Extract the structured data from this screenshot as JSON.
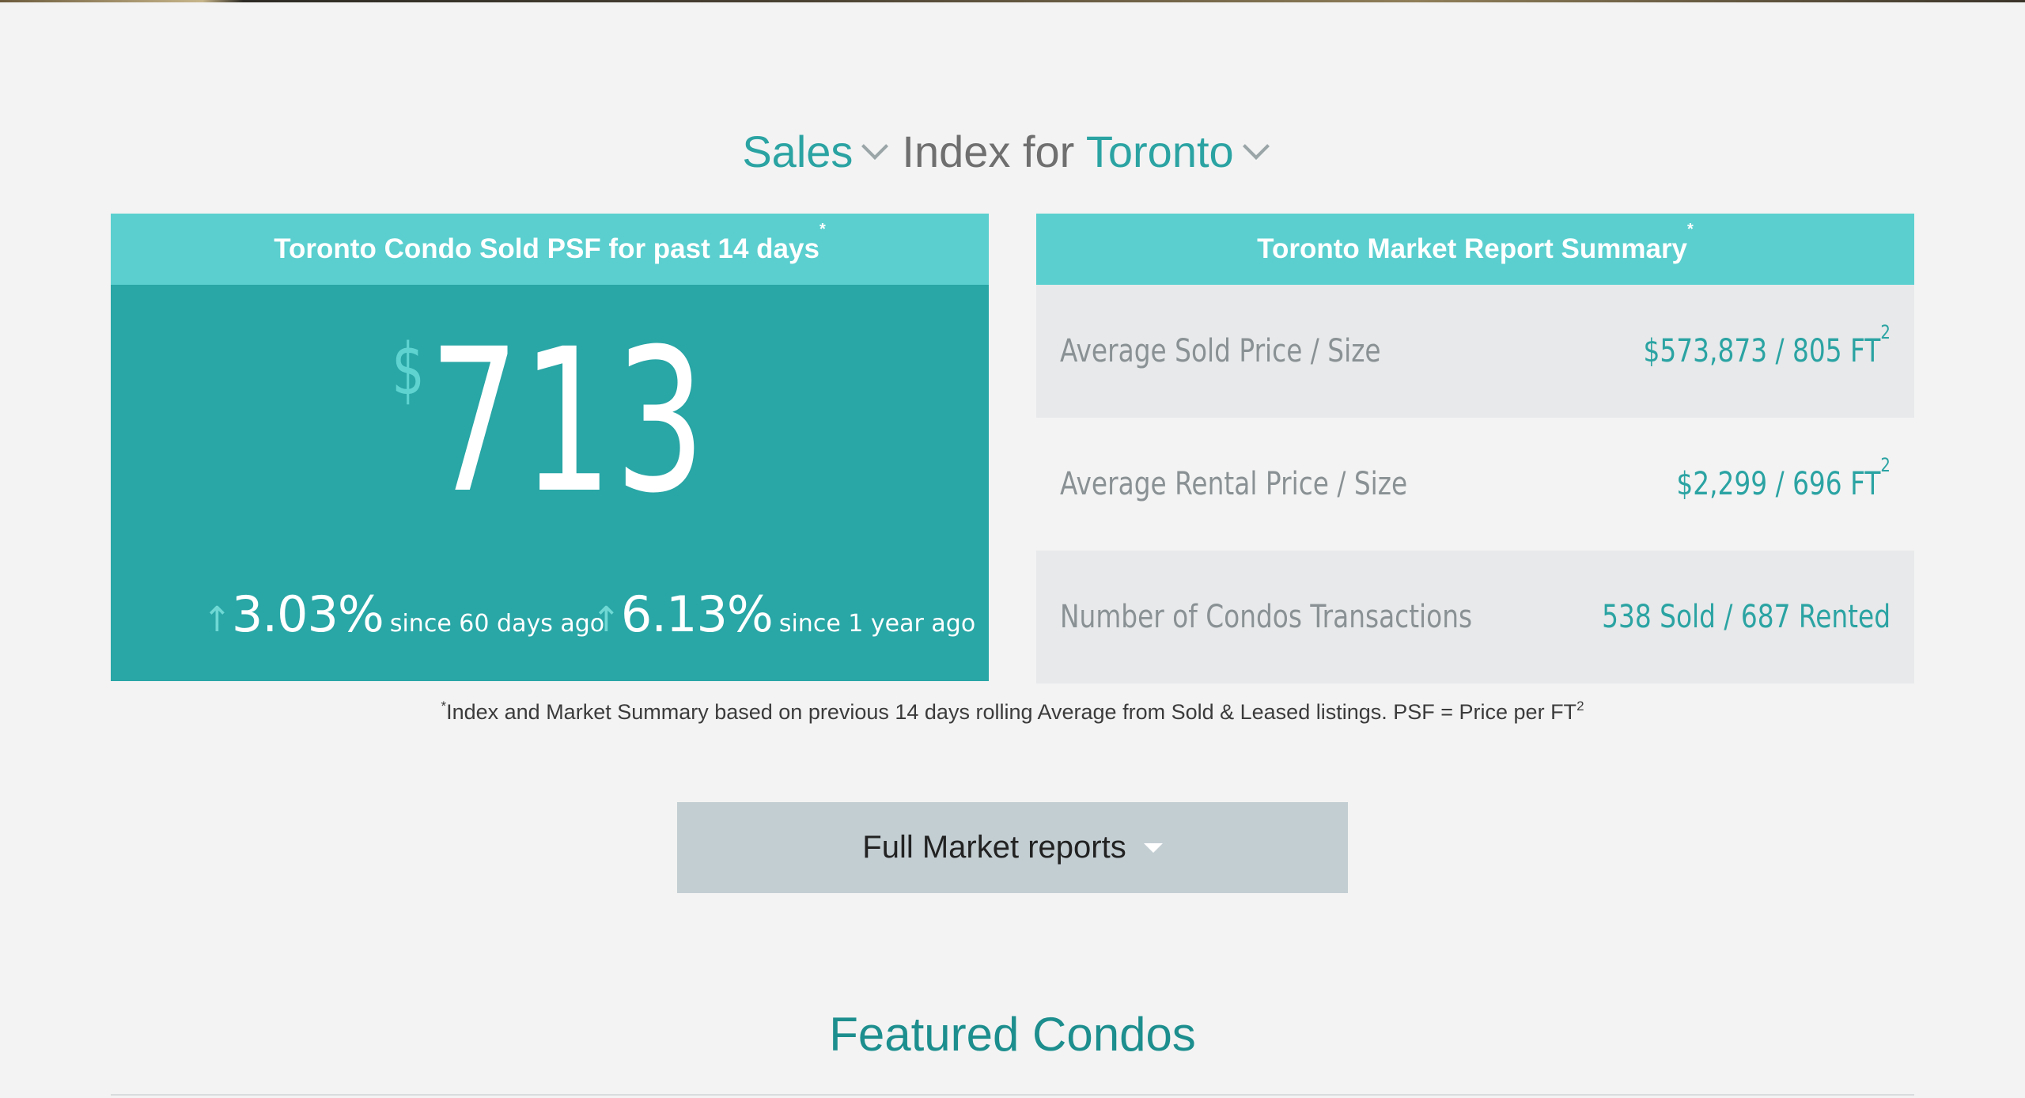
{
  "header": {
    "type_selector": "Sales",
    "middle_text": "Index for",
    "city_selector": "Toronto"
  },
  "psf_card": {
    "title": "Toronto Condo Sold PSF for past 14 days",
    "title_mark": "*",
    "currency": "$",
    "value": "713",
    "changes": [
      {
        "arrow": "↑",
        "pct": "3.03%",
        "label": "since 60 days ago"
      },
      {
        "arrow": "↑",
        "pct": "6.13%",
        "label": "since 1 year ago"
      }
    ]
  },
  "summary_card": {
    "title": "Toronto Market Report Summary",
    "title_mark": "*",
    "rows": [
      {
        "label": "Average Sold Price / Size",
        "value": "$573,873 / 805 FT",
        "sup": "2"
      },
      {
        "label": "Average Rental Price / Size",
        "value": "$2,299 / 696 FT",
        "sup": "2"
      },
      {
        "label": "Number of Condos Transactions",
        "value": "538 Sold / 687 Rented",
        "sup": ""
      }
    ]
  },
  "footnote": {
    "mark": "*",
    "text": "Index and Market Summary based on previous 14 days rolling Average from Sold & Leased listings. PSF = Price per FT",
    "sup": "2"
  },
  "market_button": {
    "label": "Full Market reports"
  },
  "featured": {
    "title": "Featured Condos"
  },
  "colors": {
    "teal_dark": "#29a6a6",
    "teal_light": "#5bcfcf",
    "teal_text": "#2ba3a3",
    "background": "#f3f3f3",
    "button": "#c3ced3"
  },
  "icons": {
    "type_chevron": "chevron-down-icon",
    "city_chevron": "chevron-down-icon",
    "change_arrow": "arrow-up-icon",
    "button_caret": "caret-down-icon"
  }
}
